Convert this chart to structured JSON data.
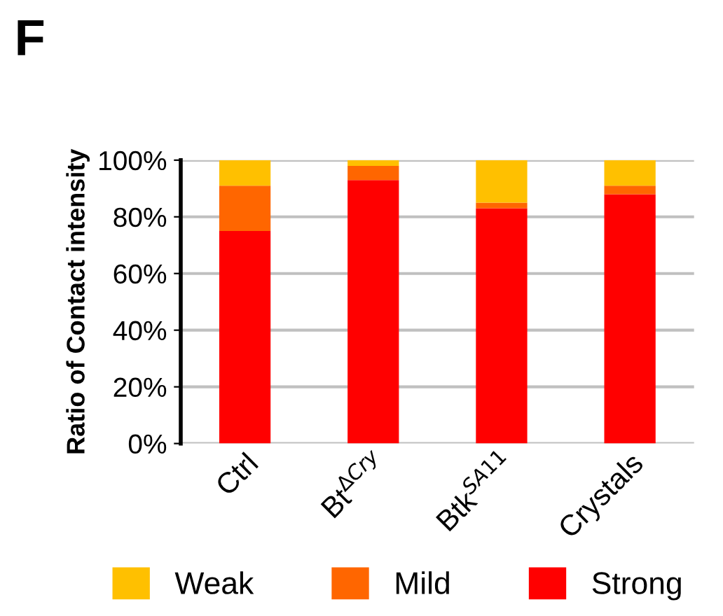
{
  "chart_data": {
    "type": "bar",
    "title": "F",
    "ylabel": "Ratio of Contact intensity",
    "categories": [
      "Ctrl",
      "Bt$^{ΔCry}$",
      "Btk$^{SA11}$",
      "Crystals"
    ],
    "stacked": true,
    "series": [
      {
        "name": "Strong",
        "color": "#ff0000",
        "values": [
          75,
          93,
          83,
          88
        ]
      },
      {
        "name": "Mild",
        "color": "#ff6600",
        "values": [
          16,
          5,
          2,
          3
        ]
      },
      {
        "name": "Weak",
        "color": "#ffc000",
        "values": [
          9,
          2,
          15,
          9
        ]
      }
    ],
    "ylim": [
      0,
      100
    ],
    "yticks": [
      {
        "value": 0,
        "label": "0%"
      },
      {
        "value": 20,
        "label": "20%"
      },
      {
        "value": 40,
        "label": "40%"
      },
      {
        "value": 60,
        "label": "60%"
      },
      {
        "value": 80,
        "label": "80%"
      },
      {
        "value": 100,
        "label": "100%"
      }
    ],
    "grid": "y",
    "legend": "bottom"
  }
}
